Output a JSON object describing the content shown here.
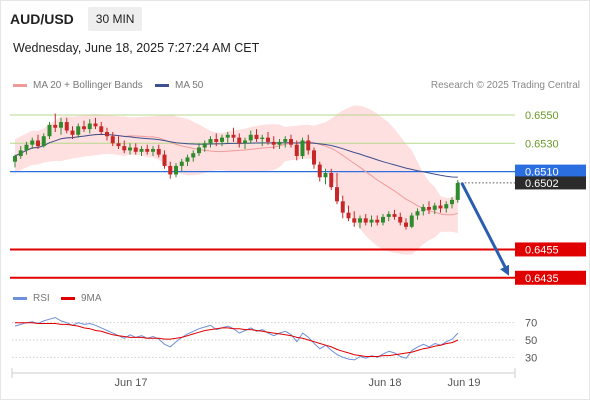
{
  "header": {
    "symbol": "AUD/USD",
    "timeframe": "30 MIN",
    "datetime": "Wednesday, June 18, 2025 7:27:24 AM CET"
  },
  "legend": {
    "ma20": "MA 20 + Bollinger Bands",
    "ma50": "MA 50",
    "research": "Research © 2025 Trading Central",
    "rsi": "RSI",
    "ma9": "9MA"
  },
  "colors": {
    "up_candle": "#2e8b2e",
    "down_candle": "#c62828",
    "bollinger_fill": "#ffd6d6",
    "ma20": "#ef9a9a",
    "ma50": "#3f4f8f",
    "resistance": "#b7d98b",
    "support": "#e00000",
    "pivot": "#2a6ee0",
    "arrow": "#2a5db0",
    "rsi": "#6e8fdc",
    "rsi_ma": "#e00000"
  },
  "chart_data": [
    {
      "type": "candlestick",
      "title": "AUD/USD 30 MIN",
      "x_ticks": [
        "Jun 17",
        "Jun 18",
        "Jun 19"
      ],
      "ylim": [
        0.6432,
        0.6562
      ],
      "levels": [
        {
          "label": "0.6550",
          "value": 0.655,
          "kind": "resistance"
        },
        {
          "label": "0.6530",
          "value": 0.653,
          "kind": "resistance"
        },
        {
          "label": "0.6510",
          "value": 0.651,
          "kind": "pivot"
        },
        {
          "label": "0.6502",
          "value": 0.6502,
          "kind": "last"
        },
        {
          "label": "0.6455",
          "value": 0.6455,
          "kind": "support"
        },
        {
          "label": "0.6435",
          "value": 0.6435,
          "kind": "support"
        }
      ],
      "candles": [
        [
          0.6517,
          0.6522,
          0.6513,
          0.6521
        ],
        [
          0.6521,
          0.6528,
          0.6519,
          0.6525
        ],
        [
          0.6525,
          0.6531,
          0.6522,
          0.6529
        ],
        [
          0.6529,
          0.6534,
          0.6526,
          0.6532
        ],
        [
          0.6532,
          0.6536,
          0.6526,
          0.6528
        ],
        [
          0.6528,
          0.6537,
          0.6527,
          0.6535
        ],
        [
          0.6535,
          0.6545,
          0.6533,
          0.6543
        ],
        [
          0.6543,
          0.6551,
          0.6538,
          0.6541
        ],
        [
          0.6541,
          0.6548,
          0.6536,
          0.6545
        ],
        [
          0.6545,
          0.6548,
          0.6537,
          0.6539
        ],
        [
          0.6539,
          0.6542,
          0.6533,
          0.6536
        ],
        [
          0.6536,
          0.6544,
          0.6534,
          0.6542
        ],
        [
          0.6542,
          0.6546,
          0.6538,
          0.654
        ],
        [
          0.654,
          0.6547,
          0.6537,
          0.6544
        ],
        [
          0.6544,
          0.6548,
          0.654,
          0.6542
        ],
        [
          0.6542,
          0.6545,
          0.6536,
          0.6538
        ],
        [
          0.6538,
          0.6541,
          0.6532,
          0.6535
        ],
        [
          0.6535,
          0.6538,
          0.6528,
          0.653
        ],
        [
          0.653,
          0.6535,
          0.6526,
          0.6528
        ],
        [
          0.6528,
          0.6532,
          0.6523,
          0.6525
        ],
        [
          0.6525,
          0.653,
          0.6522,
          0.6527
        ],
        [
          0.6527,
          0.653,
          0.6522,
          0.6524
        ],
        [
          0.6524,
          0.6528,
          0.6521,
          0.6526
        ],
        [
          0.6526,
          0.6529,
          0.6522,
          0.6524
        ],
        [
          0.6524,
          0.6528,
          0.6521,
          0.6526
        ],
        [
          0.6526,
          0.6529,
          0.652,
          0.6522
        ],
        [
          0.6522,
          0.6525,
          0.6512,
          0.6514
        ],
        [
          0.6514,
          0.6517,
          0.6505,
          0.6508
        ],
        [
          0.6508,
          0.6516,
          0.6506,
          0.6514
        ],
        [
          0.6514,
          0.6519,
          0.651,
          0.6517
        ],
        [
          0.6517,
          0.6522,
          0.6514,
          0.652
        ],
        [
          0.652,
          0.6525,
          0.6517,
          0.6523
        ],
        [
          0.6523,
          0.653,
          0.6521,
          0.6527
        ],
        [
          0.6527,
          0.6532,
          0.6524,
          0.653
        ],
        [
          0.653,
          0.6535,
          0.6527,
          0.6533
        ],
        [
          0.6533,
          0.6537,
          0.6528,
          0.6531
        ],
        [
          0.6531,
          0.6536,
          0.6528,
          0.6534
        ],
        [
          0.6534,
          0.6538,
          0.653,
          0.6536
        ],
        [
          0.6536,
          0.6541,
          0.6531,
          0.6534
        ],
        [
          0.6534,
          0.6537,
          0.6527,
          0.653
        ],
        [
          0.653,
          0.6534,
          0.6526,
          0.6532
        ],
        [
          0.6532,
          0.6539,
          0.653,
          0.6536
        ],
        [
          0.6536,
          0.654,
          0.6531,
          0.6533
        ],
        [
          0.6533,
          0.6536,
          0.6528,
          0.6534
        ],
        [
          0.6534,
          0.6538,
          0.6529,
          0.6531
        ],
        [
          0.6531,
          0.6535,
          0.6526,
          0.6529
        ],
        [
          0.6529,
          0.6533,
          0.6526,
          0.6531
        ],
        [
          0.6531,
          0.6535,
          0.6527,
          0.6533
        ],
        [
          0.6533,
          0.6536,
          0.6527,
          0.6529
        ],
        [
          0.6529,
          0.6532,
          0.6518,
          0.6521
        ],
        [
          0.6521,
          0.6534,
          0.6519,
          0.6532
        ],
        [
          0.6532,
          0.6536,
          0.6522,
          0.6525
        ],
        [
          0.6525,
          0.6527,
          0.6512,
          0.6515
        ],
        [
          0.6515,
          0.6517,
          0.6503,
          0.6506
        ],
        [
          0.6506,
          0.6512,
          0.6501,
          0.6509
        ],
        [
          0.6509,
          0.6512,
          0.6497,
          0.6499
        ],
        [
          0.6499,
          0.6509,
          0.6487,
          0.6489
        ],
        [
          0.6489,
          0.6493,
          0.6477,
          0.6481
        ],
        [
          0.6481,
          0.6486,
          0.6475,
          0.6477
        ],
        [
          0.6477,
          0.6482,
          0.6471,
          0.6474
        ],
        [
          0.6474,
          0.6479,
          0.647,
          0.6477
        ],
        [
          0.6477,
          0.648,
          0.6472,
          0.6474
        ],
        [
          0.6474,
          0.6479,
          0.6471,
          0.6476
        ],
        [
          0.6476,
          0.6479,
          0.6472,
          0.6474
        ],
        [
          0.6474,
          0.648,
          0.6472,
          0.6478
        ],
        [
          0.6478,
          0.6482,
          0.6475,
          0.648
        ],
        [
          0.648,
          0.6483,
          0.6476,
          0.6478
        ],
        [
          0.6478,
          0.6481,
          0.6472,
          0.6474
        ],
        [
          0.6474,
          0.6477,
          0.6469,
          0.6471
        ],
        [
          0.6471,
          0.6481,
          0.647,
          0.6479
        ],
        [
          0.6479,
          0.6484,
          0.6476,
          0.6482
        ],
        [
          0.6482,
          0.6487,
          0.6479,
          0.6485
        ],
        [
          0.6485,
          0.6489,
          0.648,
          0.6483
        ],
        [
          0.6483,
          0.6488,
          0.648,
          0.6486
        ],
        [
          0.6486,
          0.649,
          0.6481,
          0.6484
        ],
        [
          0.6484,
          0.6489,
          0.6481,
          0.6487
        ],
        [
          0.6487,
          0.6492,
          0.6484,
          0.649
        ],
        [
          0.649,
          0.6504,
          0.6488,
          0.6502
        ]
      ]
    },
    {
      "type": "line",
      "title": "RSI",
      "x_ticks": [
        "Jun 17",
        "Jun 18",
        "Jun 19"
      ],
      "ylim": [
        20,
        80
      ],
      "y_ticks": [
        30,
        50,
        70
      ],
      "series": [
        {
          "name": "RSI",
          "values": [
            66,
            68,
            70,
            71,
            69,
            72,
            74,
            76,
            72,
            70,
            67,
            70,
            68,
            69,
            67,
            64,
            61,
            58,
            55,
            52,
            56,
            53,
            55,
            52,
            54,
            51,
            45,
            42,
            48,
            53,
            57,
            60,
            63,
            65,
            67,
            62,
            64,
            66,
            63,
            58,
            61,
            64,
            60,
            62,
            58,
            55,
            58,
            60,
            56,
            48,
            58,
            53,
            46,
            40,
            44,
            38,
            33,
            30,
            28,
            27,
            31,
            29,
            32,
            30,
            34,
            37,
            35,
            31,
            29,
            38,
            42,
            45,
            42,
            46,
            44,
            48,
            51,
            58
          ]
        },
        {
          "name": "9MA",
          "values": [
            70,
            70,
            70,
            70,
            69,
            69,
            69,
            69,
            68,
            68,
            67,
            66,
            64,
            63,
            61,
            60,
            58,
            56,
            55,
            54,
            53,
            53,
            53,
            52,
            52,
            52,
            51,
            51,
            52,
            53,
            55,
            57,
            59,
            61,
            62,
            63,
            64,
            64,
            63,
            63,
            62,
            62,
            61,
            60,
            59,
            58,
            57,
            56,
            55,
            53,
            52,
            50,
            48,
            46,
            44,
            42,
            39,
            37,
            35,
            33,
            32,
            31,
            31,
            31,
            32,
            32,
            33,
            34,
            35,
            36,
            38,
            40,
            41,
            43,
            44,
            46,
            47,
            50
          ]
        }
      ]
    }
  ]
}
